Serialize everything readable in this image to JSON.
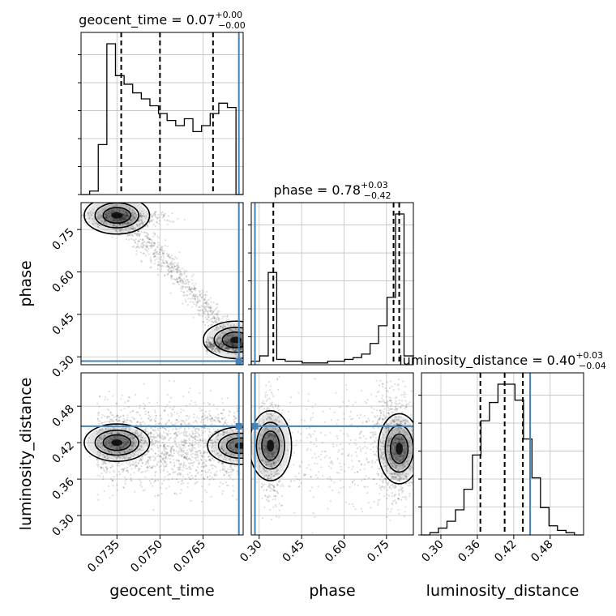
{
  "chart_data": {
    "type": "corner",
    "params": [
      "geocent_time",
      "phase",
      "luminosity_distance"
    ],
    "axis_labels": {
      "geocent_time": "geocent_time",
      "phase": "phase",
      "luminosity_distance": "luminosity_distance"
    },
    "ranges": {
      "geocent_time": [
        0.07225,
        0.0779
      ],
      "phase": [
        0.272,
        0.845
      ],
      "luminosity_distance": [
        0.268,
        0.535
      ]
    },
    "ticks": {
      "geocent_time": [
        0.0735,
        0.075,
        0.0765
      ],
      "phase": [
        0.3,
        0.45,
        0.6,
        0.75
      ],
      "luminosity_distance": [
        0.3,
        0.36,
        0.42,
        0.48
      ]
    },
    "tick_labels": {
      "geocent_time": [
        "0.0735",
        "0.0750",
        "0.0765"
      ],
      "phase": [
        "0.30",
        "0.45",
        "0.60",
        "0.75"
      ],
      "luminosity_distance": [
        "0.30",
        "0.36",
        "0.42",
        "0.48"
      ]
    },
    "truths": {
      "geocent_time": 0.07775,
      "phase": 0.285,
      "luminosity_distance": 0.447
    },
    "truth_color": "#4682b4",
    "titles": [
      {
        "param": "geocent_time",
        "label": "geocent_time = 0.07",
        "sup": "+0.00",
        "sub": "−0.00"
      },
      {
        "param": "phase",
        "label": "phase = 0.78",
        "sup": "+0.03",
        "sub": "−0.42"
      },
      {
        "param": "luminosity_distance",
        "label": "luminosity_distance = 0.40",
        "sup": "+0.03",
        "sub": "−0.04"
      }
    ],
    "quantiles": {
      "geocent_time": [
        0.07365,
        0.075,
        0.07685
      ],
      "phase": [
        0.35,
        0.775,
        0.795
      ],
      "luminosity_distance": [
        0.365,
        0.405,
        0.435
      ]
    },
    "histograms": {
      "geocent_time": {
        "edges": [
          0.07225,
          0.07255,
          0.07285,
          0.07315,
          0.07345,
          0.07375,
          0.07405,
          0.07435,
          0.07465,
          0.07495,
          0.07525,
          0.07555,
          0.07585,
          0.07615,
          0.07645,
          0.07675,
          0.07705,
          0.07735,
          0.07765,
          0.0779
        ],
        "counts": [
          0,
          4,
          58,
          175,
          138,
          128,
          118,
          111,
          103,
          94,
          86,
          80,
          88,
          73,
          80,
          94,
          106,
          101,
          0
        ]
      },
      "phase": {
        "edges": [
          0.272,
          0.302,
          0.332,
          0.362,
          0.392,
          0.422,
          0.452,
          0.482,
          0.512,
          0.542,
          0.572,
          0.602,
          0.632,
          0.662,
          0.692,
          0.722,
          0.752,
          0.782,
          0.812,
          0.845
        ],
        "counts": [
          2,
          5,
          52,
          3,
          2,
          2,
          1,
          1,
          1,
          2,
          2,
          3,
          4,
          6,
          12,
          22,
          38,
          85,
          5
        ]
      },
      "luminosity_distance": {
        "edges": [
          0.268,
          0.282,
          0.296,
          0.31,
          0.324,
          0.338,
          0.352,
          0.366,
          0.38,
          0.394,
          0.408,
          0.422,
          0.436,
          0.45,
          0.464,
          0.478,
          0.492,
          0.506,
          0.52,
          0.535
        ],
        "counts": [
          0,
          1,
          3,
          6,
          11,
          20,
          35,
          50,
          58,
          66,
          66,
          59,
          42,
          25,
          12,
          4,
          2,
          1,
          0
        ]
      }
    },
    "joint": {
      "geocent_time|phase": {
        "mode_points": [
          {
            "x": 0.0735,
            "y": 0.8
          },
          {
            "x": 0.07765,
            "y": 0.36
          }
        ]
      },
      "geocent_time|luminosity_distance": {
        "mode_points": [
          {
            "x": 0.0735,
            "y": 0.42
          },
          {
            "x": 0.0778,
            "y": 0.415
          }
        ]
      },
      "phase|luminosity_distance": {
        "mode_points": [
          {
            "x": 0.34,
            "y": 0.415
          },
          {
            "x": 0.795,
            "y": 0.41
          }
        ]
      }
    }
  }
}
